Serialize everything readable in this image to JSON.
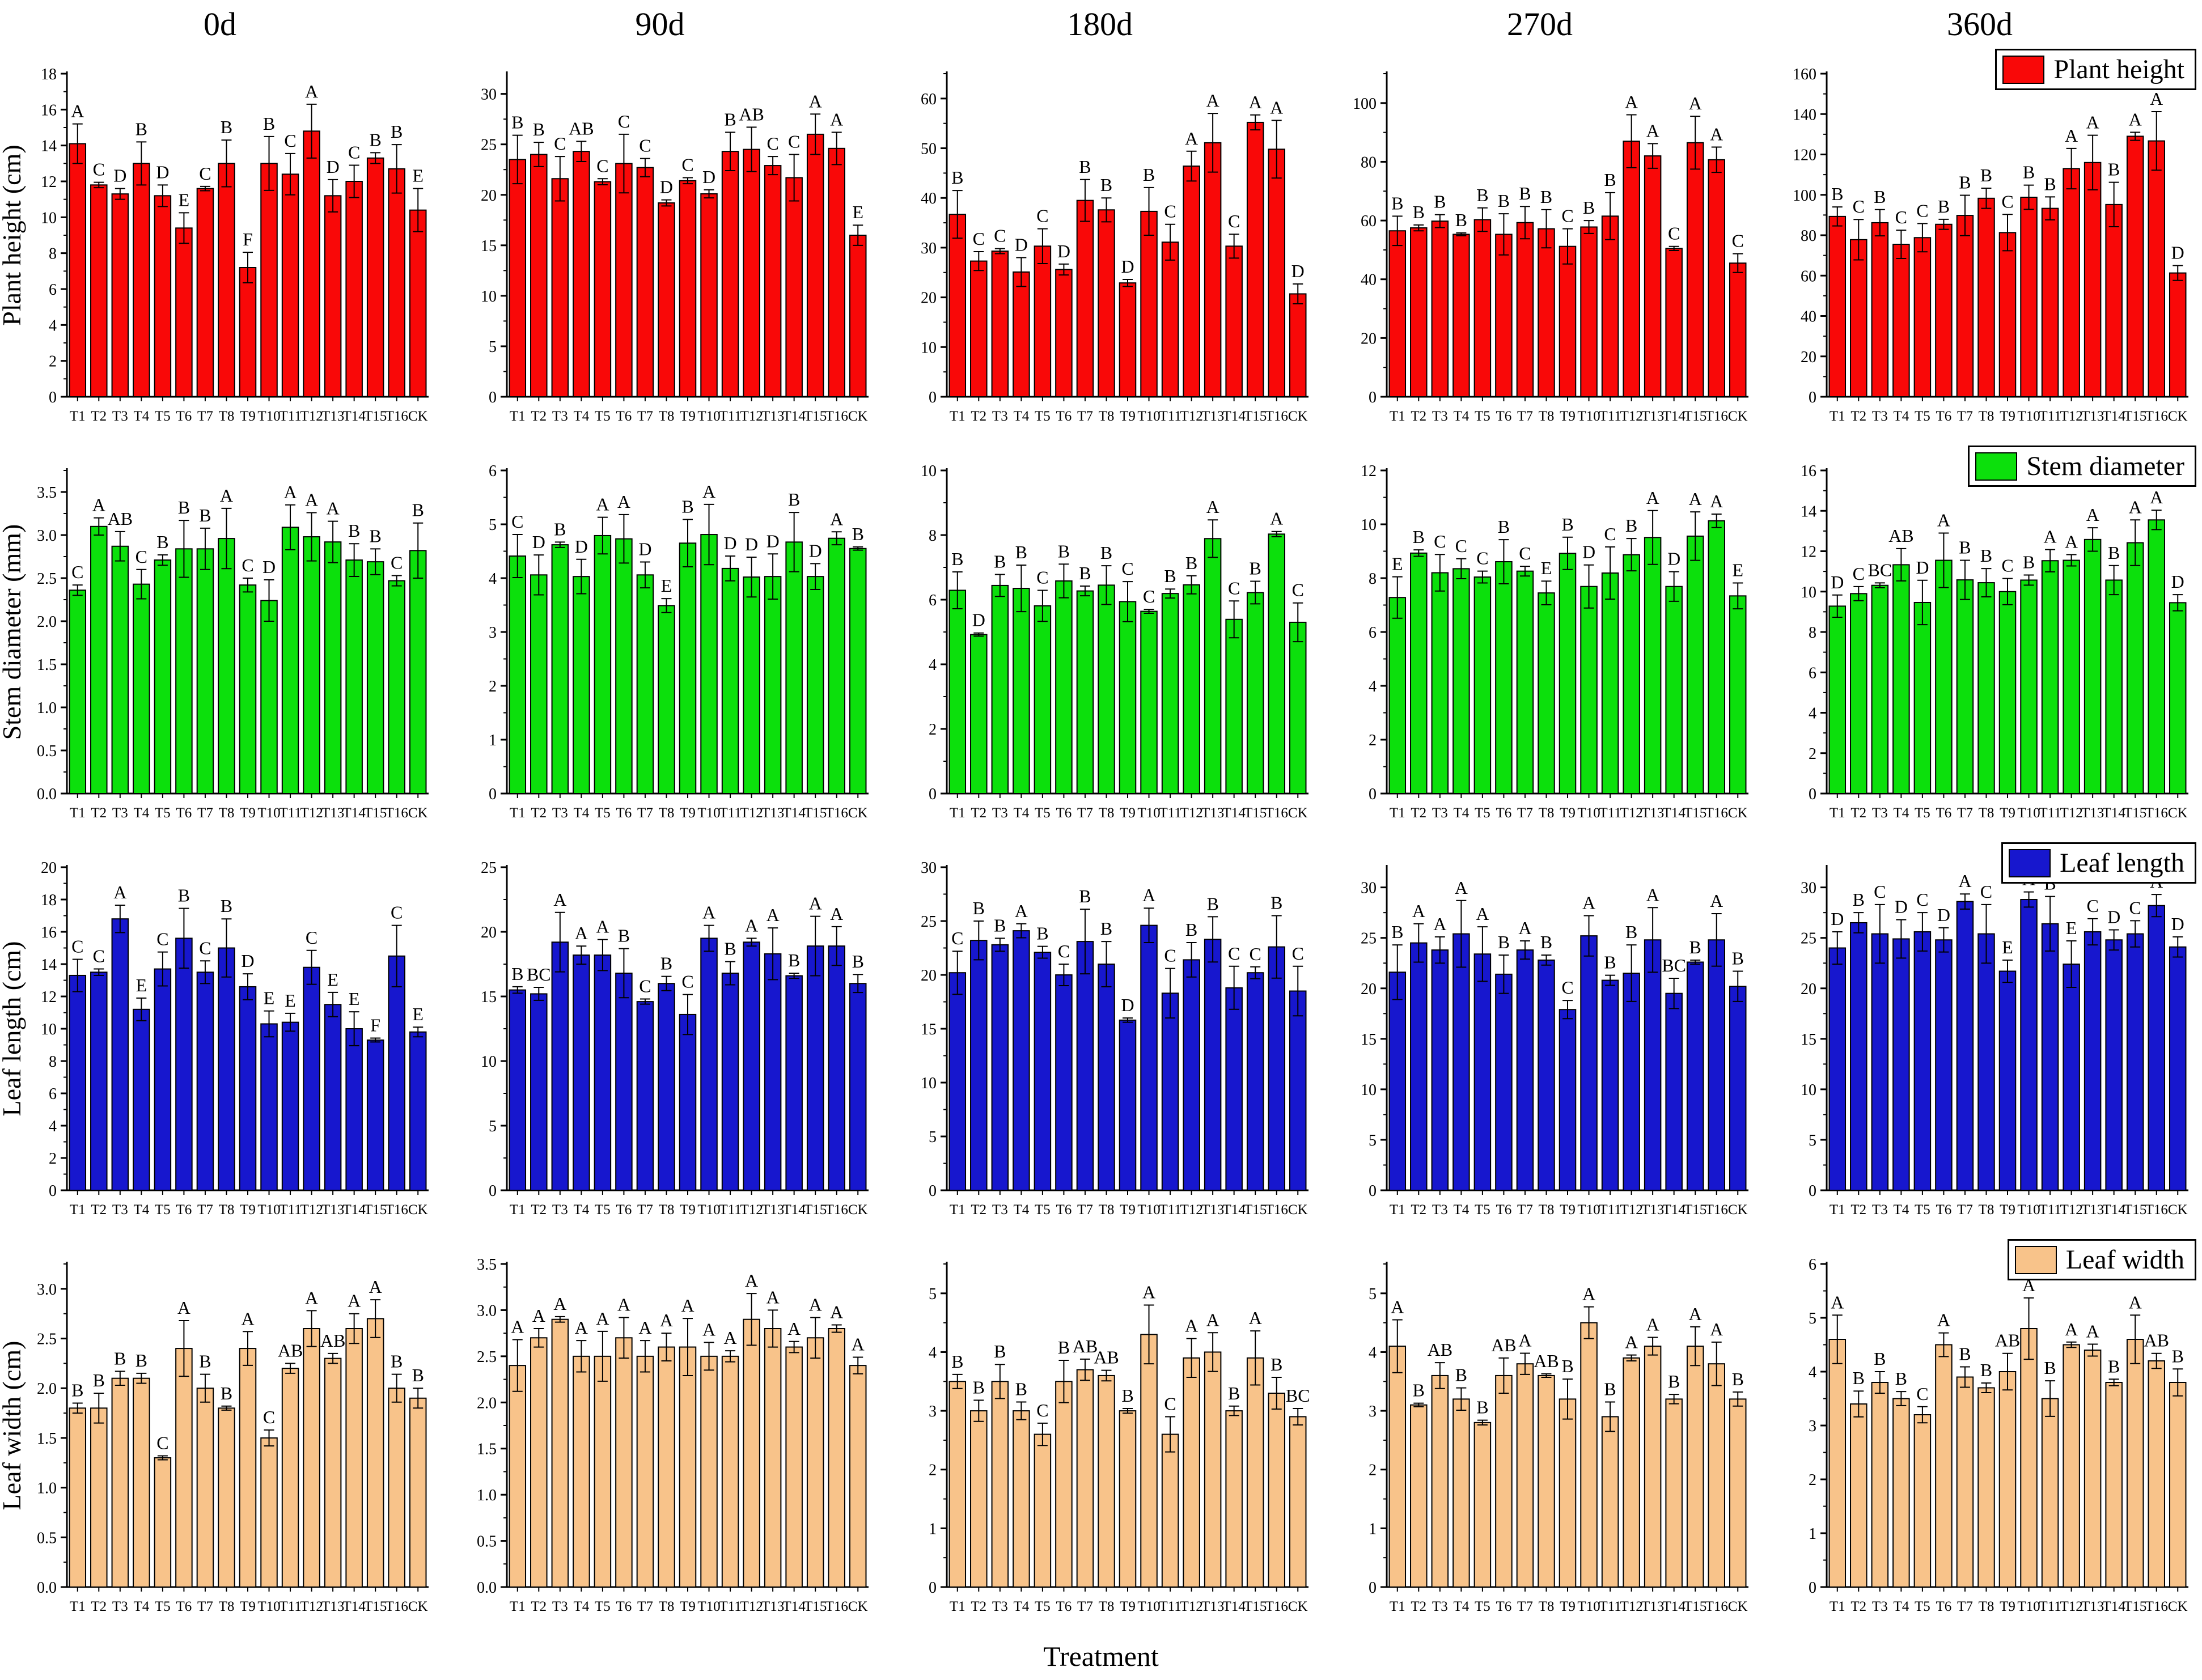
{
  "figure": {
    "columns": [
      "0d",
      "90d",
      "180d",
      "270d",
      "360d"
    ],
    "xlabel": "Treatment",
    "categories": [
      "T1",
      "T2",
      "T3",
      "T4",
      "T5",
      "T6",
      "T7",
      "T8",
      "T9",
      "T10",
      "T11",
      "T12",
      "T13",
      "T14",
      "T15",
      "T16",
      "CK"
    ],
    "rows": [
      {
        "ylabel": "Plant height (cm)",
        "legend": "Plant height",
        "color": "#F90808"
      },
      {
        "ylabel": "Stem diameter (mm)",
        "legend": "Stem diameter",
        "color": "#0CE00C"
      },
      {
        "ylabel": "Leaf length (cm)",
        "legend": "Leaf length",
        "color": "#1717CE"
      },
      {
        "ylabel": "Leaf width (cm)",
        "legend": "Leaf width",
        "color": "#F8C38A"
      }
    ]
  },
  "chart_data": [
    {
      "type": "bar",
      "row": "Plant height",
      "column": "0d",
      "ylabel": "Plant height (cm)",
      "ylim": [
        0,
        18
      ],
      "ystep": 2,
      "ydec": 0,
      "values": [
        14.1,
        11.8,
        11.3,
        13.0,
        11.2,
        9.4,
        11.6,
        13.0,
        7.2,
        13.0,
        12.4,
        14.8,
        11.2,
        12.0,
        13.3,
        12.7,
        10.4
      ],
      "errors": [
        1.1,
        0.15,
        0.3,
        1.2,
        0.6,
        0.85,
        0.12,
        1.3,
        0.85,
        1.5,
        1.15,
        1.5,
        0.9,
        0.9,
        0.3,
        1.35,
        1.2
      ],
      "letters": [
        "A",
        "C",
        "D",
        "B",
        "D",
        "E",
        "C",
        "B",
        "F",
        "B",
        "C",
        "A",
        "D",
        "C",
        "B",
        "B",
        "E"
      ]
    },
    {
      "type": "bar",
      "row": "Plant height",
      "column": "90d",
      "ylabel": "",
      "ylim": [
        0,
        32
      ],
      "ystep": 5,
      "ydec": 0,
      "values": [
        23.5,
        24.0,
        21.6,
        24.3,
        21.3,
        23.1,
        22.7,
        19.2,
        21.4,
        20.1,
        24.3,
        24.5,
        22.9,
        21.7,
        26.0,
        24.6,
        16.0
      ],
      "errors": [
        2.4,
        1.2,
        2.2,
        1.0,
        0.3,
        2.9,
        0.9,
        0.3,
        0.3,
        0.4,
        1.9,
        2.2,
        0.9,
        2.3,
        2.0,
        1.6,
        1.0
      ],
      "letters": [
        "B",
        "B",
        "C",
        "AB",
        "C",
        "C",
        "C",
        "D",
        "C",
        "D",
        "B",
        "AB",
        "C",
        "C",
        "A",
        "A",
        "E"
      ]
    },
    {
      "type": "bar",
      "row": "Plant height",
      "column": "180d",
      "ylabel": "",
      "ylim": [
        0,
        65
      ],
      "ystep": 10,
      "ydec": 0,
      "values": [
        36.7,
        27.3,
        29.3,
        25.1,
        30.3,
        25.6,
        39.5,
        37.6,
        22.9,
        37.3,
        31.1,
        46.4,
        51.1,
        30.3,
        55.2,
        49.8,
        20.7
      ],
      "errors": [
        4.8,
        1.9,
        0.5,
        2.9,
        3.5,
        1.1,
        4.2,
        2.4,
        0.7,
        4.8,
        3.6,
        3.0,
        5.9,
        2.4,
        1.5,
        5.8,
        2.0
      ],
      "letters": [
        "B",
        "C",
        "C",
        "D",
        "C",
        "D",
        "B",
        "B",
        "D",
        "B",
        "C",
        "A",
        "A",
        "C",
        "A",
        "A",
        "D"
      ]
    },
    {
      "type": "bar",
      "row": "Plant height",
      "column": "270d",
      "ylabel": "",
      "ylim": [
        0,
        110
      ],
      "ystep": 20,
      "ydec": 0,
      "values": [
        56.5,
        57.5,
        59.8,
        55.3,
        60.3,
        55.3,
        59.3,
        57.2,
        51.2,
        57.8,
        61.5,
        87.0,
        82.0,
        50.5,
        86.5,
        80.7,
        45.5
      ],
      "errors": [
        5.0,
        1.0,
        2.2,
        0.5,
        4.0,
        7.0,
        5.5,
        6.5,
        6.0,
        2.2,
        8.0,
        9.0,
        4.2,
        0.7,
        9.0,
        4.3,
        3.2
      ],
      "letters": [
        "B",
        "B",
        "B",
        "B",
        "B",
        "B",
        "B",
        "B",
        "C",
        "B",
        "B",
        "A",
        "A",
        "C",
        "A",
        "A",
        "C"
      ]
    },
    {
      "type": "bar",
      "row": "Plant height",
      "column": "360d",
      "ylabel": "",
      "ylim": [
        0,
        160
      ],
      "ystep": 20,
      "ydec": 0,
      "values": [
        89.3,
        77.8,
        86.2,
        75.5,
        78.8,
        85.4,
        89.8,
        98.3,
        81.3,
        98.8,
        93.3,
        113.0,
        116.0,
        95.2,
        129.0,
        126.7,
        61.3
      ],
      "errors": [
        4.7,
        10.0,
        6.5,
        7.0,
        7.0,
        2.5,
        10.0,
        5.0,
        9.0,
        6.0,
        5.7,
        10.0,
        13.5,
        11.0,
        2.0,
        14.5,
        3.7
      ],
      "letters": [
        "B",
        "C",
        "B",
        "C",
        "C",
        "B",
        "B",
        "B",
        "C",
        "B",
        "B",
        "A",
        "A",
        "B",
        "A",
        "A",
        "D"
      ]
    },
    {
      "type": "bar",
      "row": "Stem diameter",
      "column": "0d",
      "ylabel": "Stem diameter (mm)",
      "ylim": [
        0,
        3.75
      ],
      "ystep": 0.5,
      "ydec": 1,
      "values": [
        2.36,
        3.1,
        2.87,
        2.43,
        2.71,
        2.84,
        2.84,
        2.96,
        2.42,
        2.24,
        3.09,
        2.98,
        2.92,
        2.71,
        2.69,
        2.47,
        2.82
      ],
      "errors": [
        0.06,
        0.1,
        0.17,
        0.17,
        0.06,
        0.33,
        0.24,
        0.35,
        0.08,
        0.24,
        0.26,
        0.28,
        0.24,
        0.19,
        0.15,
        0.06,
        0.32
      ],
      "letters": [
        "C",
        "A",
        "AB",
        "C",
        "B",
        "B",
        "B",
        "A",
        "C",
        "D",
        "A",
        "A",
        "A",
        "B",
        "B",
        "C",
        "B"
      ]
    },
    {
      "type": "bar",
      "row": "Stem diameter",
      "column": "90d",
      "ylabel": "",
      "ylim": [
        0,
        6
      ],
      "ystep": 1,
      "ydec": 0,
      "values": [
        4.41,
        4.06,
        4.62,
        4.03,
        4.79,
        4.73,
        4.06,
        3.49,
        4.65,
        4.81,
        4.18,
        4.02,
        4.03,
        4.67,
        4.03,
        4.74,
        4.55
      ],
      "errors": [
        0.4,
        0.37,
        0.05,
        0.32,
        0.34,
        0.45,
        0.24,
        0.13,
        0.44,
        0.56,
        0.23,
        0.37,
        0.42,
        0.55,
        0.24,
        0.12,
        0.03
      ],
      "letters": [
        "C",
        "D",
        "B",
        "D",
        "A",
        "A",
        "D",
        "E",
        "B",
        "A",
        "D",
        "D",
        "D",
        "B",
        "D",
        "A",
        "B"
      ]
    },
    {
      "type": "bar",
      "row": "Stem diameter",
      "column": "180d",
      "ylabel": "",
      "ylim": [
        0,
        10
      ],
      "ystep": 2,
      "ydec": 0,
      "values": [
        6.29,
        4.92,
        6.44,
        6.35,
        5.81,
        6.58,
        6.27,
        6.45,
        5.94,
        5.64,
        6.19,
        6.46,
        7.89,
        5.39,
        6.22,
        8.03,
        5.3
      ],
      "errors": [
        0.57,
        0.05,
        0.34,
        0.72,
        0.48,
        0.52,
        0.15,
        0.6,
        0.62,
        0.06,
        0.14,
        0.28,
        0.58,
        0.57,
        0.35,
        0.08,
        0.6
      ],
      "letters": [
        "B",
        "D",
        "B",
        "B",
        "C",
        "B",
        "B",
        "B",
        "C",
        "C",
        "B",
        "B",
        "A",
        "C",
        "B",
        "A",
        "C"
      ]
    },
    {
      "type": "bar",
      "row": "Stem diameter",
      "column": "270d",
      "ylabel": "",
      "ylim": [
        0,
        12
      ],
      "ystep": 2,
      "ydec": 0,
      "values": [
        7.28,
        8.93,
        8.2,
        8.35,
        8.04,
        8.61,
        8.26,
        7.45,
        8.92,
        7.69,
        8.19,
        8.87,
        9.51,
        7.69,
        9.56,
        10.13,
        7.34
      ],
      "errors": [
        0.77,
        0.12,
        0.68,
        0.37,
        0.22,
        0.82,
        0.18,
        0.44,
        0.6,
        0.8,
        0.97,
        0.6,
        1.0,
        0.55,
        0.9,
        0.25,
        0.48
      ],
      "letters": [
        "E",
        "B",
        "C",
        "C",
        "C",
        "B",
        "C",
        "E",
        "B",
        "D",
        "C",
        "B",
        "A",
        "D",
        "A",
        "A",
        "E"
      ]
    },
    {
      "type": "bar",
      "row": "Stem diameter",
      "column": "360d",
      "ylabel": "",
      "ylim": [
        0,
        16
      ],
      "ystep": 2,
      "ydec": 0,
      "values": [
        9.28,
        9.9,
        10.31,
        11.33,
        9.46,
        11.55,
        10.58,
        10.44,
        10.0,
        10.57,
        11.53,
        11.55,
        12.58,
        10.57,
        12.42,
        13.55,
        9.45
      ],
      "errors": [
        0.55,
        0.35,
        0.12,
        0.8,
        1.1,
        1.35,
        0.97,
        0.7,
        0.65,
        0.25,
        0.55,
        0.28,
        0.58,
        0.72,
        1.13,
        0.48,
        0.4
      ],
      "letters": [
        "D",
        "C",
        "BC",
        "AB",
        "D",
        "A",
        "B",
        "B",
        "C",
        "B",
        "A",
        "A",
        "A",
        "B",
        "A",
        "A",
        "D"
      ]
    },
    {
      "type": "bar",
      "row": "Leaf length",
      "column": "0d",
      "ylabel": "Leaf length (cm)",
      "ylim": [
        0,
        20
      ],
      "ystep": 2,
      "ydec": 0,
      "values": [
        13.3,
        13.5,
        16.8,
        11.2,
        13.7,
        15.6,
        13.5,
        15.0,
        12.6,
        10.3,
        10.4,
        13.8,
        11.5,
        10.0,
        9.3,
        14.5,
        9.8
      ],
      "errors": [
        1.0,
        0.2,
        0.85,
        0.7,
        1.05,
        1.85,
        0.7,
        1.8,
        0.8,
        0.8,
        0.55,
        1.05,
        0.75,
        1.05,
        0.12,
        1.9,
        0.3
      ],
      "letters": [
        "C",
        "C",
        "A",
        "E",
        "C",
        "B",
        "C",
        "B",
        "D",
        "E",
        "E",
        "C",
        "E",
        "E",
        "F",
        "C",
        "E"
      ]
    },
    {
      "type": "bar",
      "row": "Leaf length",
      "column": "90d",
      "ylabel": "",
      "ylim": [
        0,
        25
      ],
      "ystep": 5,
      "ydec": 0,
      "values": [
        15.5,
        15.2,
        19.2,
        18.2,
        18.2,
        16.8,
        14.6,
        16.0,
        13.6,
        19.5,
        16.8,
        19.2,
        18.3,
        16.6,
        18.9,
        18.9,
        16.0
      ],
      "errors": [
        0.25,
        0.5,
        2.3,
        0.7,
        1.2,
        1.9,
        0.2,
        0.55,
        1.55,
        1.0,
        0.9,
        0.3,
        2.0,
        0.2,
        2.3,
        1.5,
        0.7
      ],
      "letters": [
        "B",
        "BC",
        "A",
        "A",
        "A",
        "B",
        "C",
        "B",
        "C",
        "A",
        "B",
        "A",
        "A",
        "B",
        "A",
        "A",
        "B"
      ]
    },
    {
      "type": "bar",
      "row": "Leaf length",
      "column": "180d",
      "ylabel": "",
      "ylim": [
        0,
        30
      ],
      "ystep": 5,
      "ydec": 0,
      "values": [
        20.2,
        23.2,
        22.8,
        24.1,
        22.1,
        20.0,
        23.1,
        21.0,
        15.8,
        24.6,
        18.3,
        21.4,
        23.3,
        18.8,
        20.2,
        22.6,
        18.5
      ],
      "errors": [
        2.0,
        1.8,
        0.6,
        0.65,
        0.55,
        1.0,
        3.0,
        2.1,
        0.2,
        1.6,
        2.3,
        1.6,
        2.1,
        2.0,
        0.55,
        2.9,
        2.3
      ],
      "letters": [
        "C",
        "B",
        "B",
        "A",
        "B",
        "C",
        "B",
        "B",
        "D",
        "A",
        "C",
        "B",
        "B",
        "C",
        "C",
        "B",
        "C"
      ]
    },
    {
      "type": "bar",
      "row": "Leaf length",
      "column": "270d",
      "ylabel": "",
      "ylim": [
        0,
        32
      ],
      "ystep": 5,
      "ydec": 0,
      "values": [
        21.6,
        24.5,
        23.8,
        25.4,
        23.4,
        21.4,
        23.8,
        22.8,
        17.9,
        25.2,
        20.8,
        21.5,
        24.8,
        19.5,
        22.6,
        24.8,
        20.2
      ],
      "errors": [
        2.7,
        1.9,
        1.3,
        3.3,
        2.7,
        1.9,
        0.9,
        0.5,
        0.9,
        2.0,
        0.5,
        2.8,
        3.2,
        1.5,
        0.2,
        2.6,
        1.5
      ],
      "letters": [
        "B",
        "A",
        "A",
        "A",
        "A",
        "B",
        "A",
        "B",
        "C",
        "A",
        "B",
        "B",
        "A",
        "BC",
        "B",
        "A",
        "B"
      ]
    },
    {
      "type": "bar",
      "row": "Leaf length",
      "column": "360d",
      "ylabel": "",
      "ylim": [
        0,
        32
      ],
      "ystep": 5,
      "ydec": 0,
      "values": [
        24.0,
        26.5,
        25.4,
        24.9,
        25.6,
        24.8,
        28.6,
        25.4,
        21.7,
        28.8,
        26.4,
        22.4,
        25.6,
        24.8,
        25.4,
        28.2,
        24.1
      ],
      "errors": [
        1.6,
        1.0,
        2.9,
        1.9,
        1.9,
        1.2,
        0.75,
        2.9,
        1.1,
        0.75,
        2.7,
        2.3,
        1.3,
        1.0,
        1.3,
        1.1,
        1.0
      ],
      "letters": [
        "D",
        "B",
        "C",
        "D",
        "C",
        "D",
        "A",
        "C",
        "E",
        "A",
        "B",
        "E",
        "C",
        "D",
        "C",
        "A",
        "D"
      ]
    },
    {
      "type": "bar",
      "row": "Leaf width",
      "column": "0d",
      "ylabel": "Leaf width (cm)",
      "ylim": [
        0,
        3.25
      ],
      "ystep": 0.5,
      "ydec": 1,
      "values": [
        1.8,
        1.8,
        2.1,
        2.1,
        1.3,
        2.4,
        2.0,
        1.8,
        2.4,
        1.5,
        2.2,
        2.6,
        2.3,
        2.6,
        2.7,
        2.0,
        1.9
      ],
      "errors": [
        0.05,
        0.15,
        0.07,
        0.05,
        0.02,
        0.28,
        0.14,
        0.02,
        0.17,
        0.08,
        0.05,
        0.18,
        0.05,
        0.15,
        0.19,
        0.14,
        0.1
      ],
      "letters": [
        "B",
        "B",
        "B",
        "B",
        "C",
        "A",
        "B",
        "B",
        "A",
        "C",
        "AB",
        "A",
        "AB",
        "A",
        "A",
        "B",
        "B"
      ]
    },
    {
      "type": "bar",
      "row": "Leaf width",
      "column": "90d",
      "ylabel": "",
      "ylim": [
        0,
        3.5
      ],
      "ystep": 0.5,
      "ydec": 1,
      "values": [
        2.4,
        2.7,
        2.9,
        2.5,
        2.5,
        2.7,
        2.5,
        2.6,
        2.6,
        2.5,
        2.5,
        2.9,
        2.8,
        2.6,
        2.7,
        2.8,
        2.4
      ],
      "errors": [
        0.28,
        0.1,
        0.03,
        0.17,
        0.27,
        0.22,
        0.17,
        0.15,
        0.31,
        0.15,
        0.06,
        0.28,
        0.2,
        0.06,
        0.22,
        0.04,
        0.09
      ],
      "letters": [
        "A",
        "A",
        "A",
        "A",
        "A",
        "A",
        "A",
        "A",
        "A",
        "A",
        "A",
        "A",
        "A",
        "A",
        "A",
        "A",
        "A"
      ]
    },
    {
      "type": "bar",
      "row": "Leaf width",
      "column": "180d",
      "ylabel": "",
      "ylim": [
        0,
        5.5
      ],
      "ystep": 1,
      "ydec": 0,
      "values": [
        3.5,
        3.0,
        3.5,
        3.0,
        2.6,
        3.5,
        3.7,
        3.6,
        3.0,
        4.3,
        2.6,
        3.9,
        4.0,
        3.0,
        3.9,
        3.3,
        2.9
      ],
      "errors": [
        0.12,
        0.18,
        0.29,
        0.15,
        0.19,
        0.36,
        0.18,
        0.09,
        0.04,
        0.5,
        0.3,
        0.33,
        0.33,
        0.08,
        0.46,
        0.27,
        0.14
      ],
      "letters": [
        "B",
        "B",
        "B",
        "B",
        "C",
        "B",
        "AB",
        "AB",
        "B",
        "A",
        "C",
        "A",
        "A",
        "B",
        "A",
        "B",
        "BC"
      ]
    },
    {
      "type": "bar",
      "row": "Leaf width",
      "column": "270d",
      "ylabel": "",
      "ylim": [
        0,
        5.5
      ],
      "ystep": 1,
      "ydec": 0,
      "values": [
        4.1,
        3.1,
        3.6,
        3.2,
        2.8,
        3.6,
        3.8,
        3.6,
        3.2,
        4.5,
        2.9,
        3.9,
        4.1,
        3.2,
        4.1,
        3.8,
        3.2
      ],
      "errors": [
        0.45,
        0.03,
        0.22,
        0.19,
        0.04,
        0.3,
        0.18,
        0.03,
        0.34,
        0.27,
        0.25,
        0.05,
        0.15,
        0.08,
        0.33,
        0.37,
        0.12
      ],
      "letters": [
        "A",
        "B",
        "AB",
        "B",
        "B",
        "AB",
        "A",
        "AB",
        "B",
        "A",
        "B",
        "A",
        "A",
        "B",
        "A",
        "A",
        "B"
      ]
    },
    {
      "type": "bar",
      "row": "Leaf width",
      "column": "360d",
      "ylabel": "",
      "ylim": [
        0,
        6
      ],
      "ystep": 1,
      "ydec": 0,
      "values": [
        4.6,
        3.4,
        3.8,
        3.5,
        3.2,
        4.5,
        3.9,
        3.7,
        4.0,
        4.8,
        3.5,
        4.5,
        4.4,
        3.8,
        4.6,
        4.2,
        3.8
      ],
      "errors": [
        0.45,
        0.24,
        0.2,
        0.13,
        0.15,
        0.22,
        0.19,
        0.09,
        0.34,
        0.57,
        0.33,
        0.05,
        0.11,
        0.06,
        0.45,
        0.14,
        0.25
      ],
      "letters": [
        "A",
        "B",
        "B",
        "B",
        "C",
        "A",
        "B",
        "B",
        "AB",
        "A",
        "B",
        "A",
        "A",
        "B",
        "A",
        "AB",
        "B"
      ]
    }
  ]
}
